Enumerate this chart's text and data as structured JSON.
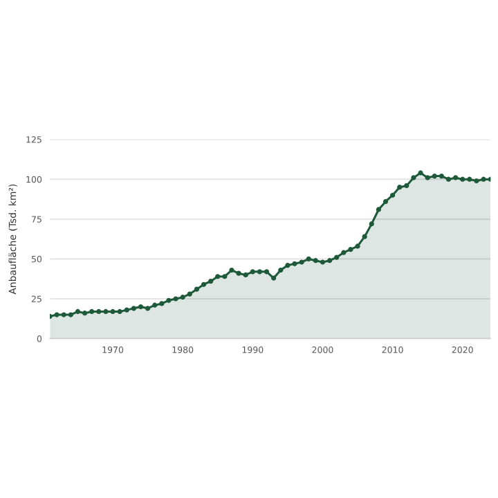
{
  "chart_data": {
    "type": "area",
    "ylabel": "Anbaufläche (Tsd. km²)",
    "x": [
      1961,
      1962,
      1963,
      1964,
      1965,
      1966,
      1967,
      1968,
      1969,
      1970,
      1971,
      1972,
      1973,
      1974,
      1975,
      1976,
      1977,
      1978,
      1979,
      1980,
      1981,
      1982,
      1983,
      1984,
      1985,
      1986,
      1987,
      1988,
      1989,
      1990,
      1991,
      1992,
      1993,
      1994,
      1995,
      1996,
      1997,
      1998,
      1999,
      2000,
      2001,
      2002,
      2003,
      2004,
      2005,
      2006,
      2007,
      2008,
      2009,
      2010,
      2011,
      2012,
      2013,
      2014,
      2015,
      2016,
      2017,
      2018,
      2019,
      2020,
      2021,
      2022,
      2023,
      2024
    ],
    "series": [
      {
        "color": "#1e5a3a",
        "values": [
          14,
          15,
          15,
          15,
          17,
          16,
          17,
          17,
          17,
          17,
          17,
          18,
          19,
          20,
          19,
          21,
          22,
          24,
          25,
          26,
          28,
          31,
          34,
          36,
          39,
          39,
          43,
          41,
          40,
          42,
          42,
          42,
          38,
          43,
          46,
          47,
          48,
          50,
          49,
          48,
          49,
          51,
          54,
          56,
          58,
          64,
          72,
          81,
          86,
          90,
          95,
          96,
          101,
          104,
          101,
          102,
          102,
          100,
          101,
          100,
          100,
          99,
          100,
          100
        ]
      }
    ],
    "xlim": [
      1961,
      2024
    ],
    "xticks": [
      1970,
      1980,
      1990,
      2000,
      2010,
      2020
    ],
    "ylim": [
      0,
      125
    ],
    "yticks": [
      0,
      25,
      50,
      75,
      100,
      125
    ],
    "grid": "y",
    "marker": "circle",
    "line_style": "solid",
    "legend": false
  }
}
